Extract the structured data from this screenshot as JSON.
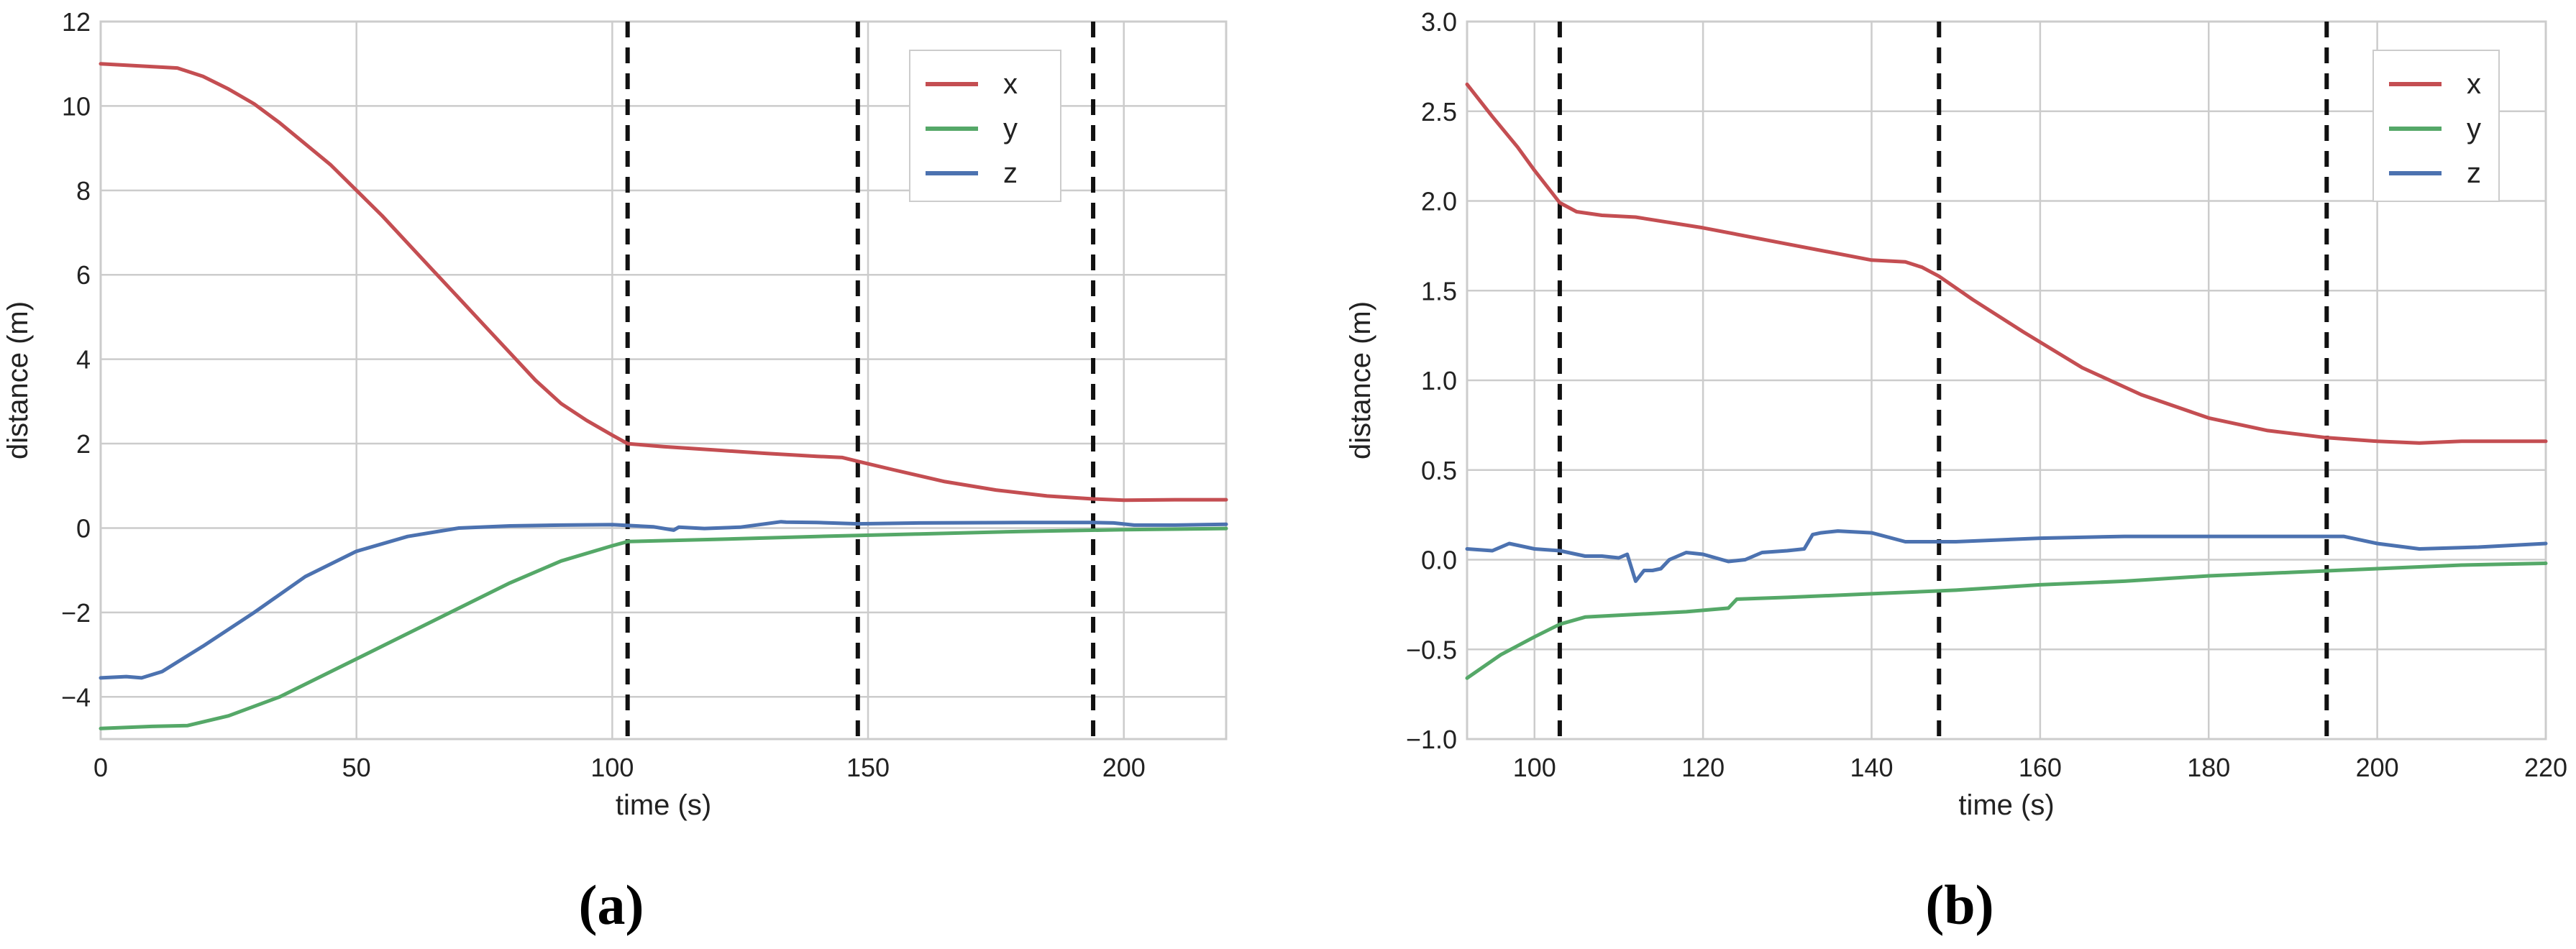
{
  "chart_data": [
    {
      "type": "line",
      "caption": "(a)",
      "xlabel": "time (s)",
      "ylabel": "distance (m)",
      "xlim": [
        0,
        220
      ],
      "ylim": [
        -5,
        12
      ],
      "xticks": [
        0,
        50,
        100,
        150,
        200
      ],
      "xtick_labels": [
        "0",
        "50",
        "100",
        "150",
        "200"
      ],
      "yticks": [
        -4,
        -2,
        0,
        2,
        4,
        6,
        8,
        10,
        12
      ],
      "ytick_labels": [
        "−4",
        "−2",
        "0",
        "2",
        "4",
        "6",
        "8",
        "10",
        "12"
      ],
      "grid": true,
      "legend": "top-right",
      "vlines": [
        103,
        148,
        194
      ],
      "series": [
        {
          "name": "x",
          "color": "#c44e52",
          "x": [
            0,
            15,
            20,
            25,
            30,
            35,
            40,
            45,
            50,
            55,
            60,
            65,
            70,
            75,
            80,
            85,
            90,
            95,
            100,
            103,
            110,
            120,
            130,
            140,
            145,
            148,
            155,
            165,
            175,
            185,
            194,
            200,
            210,
            220
          ],
          "y": [
            11.0,
            10.9,
            10.7,
            10.4,
            10.05,
            9.6,
            9.1,
            8.6,
            8.0,
            7.4,
            6.75,
            6.1,
            5.45,
            4.8,
            4.15,
            3.5,
            2.95,
            2.55,
            2.2,
            2.0,
            1.93,
            1.85,
            1.77,
            1.7,
            1.67,
            1.58,
            1.38,
            1.1,
            0.9,
            0.76,
            0.69,
            0.66,
            0.67,
            0.67
          ]
        },
        {
          "name": "y",
          "color": "#55a868",
          "x": [
            0,
            10,
            17,
            25,
            35,
            50,
            65,
            80,
            90,
            100,
            103,
            120,
            140,
            160,
            180,
            200,
            220
          ],
          "y": [
            -4.75,
            -4.7,
            -4.68,
            -4.45,
            -4.0,
            -3.1,
            -2.2,
            -1.3,
            -0.78,
            -0.42,
            -0.32,
            -0.27,
            -0.2,
            -0.14,
            -0.08,
            -0.04,
            -0.01
          ]
        },
        {
          "name": "z",
          "color": "#4c72b0",
          "x": [
            0,
            5,
            8,
            12,
            20,
            30,
            40,
            50,
            60,
            70,
            80,
            90,
            100,
            103,
            108,
            112,
            113,
            118,
            125,
            133,
            134,
            140,
            148,
            160,
            180,
            194,
            198,
            202,
            210,
            220
          ],
          "y": [
            -3.55,
            -3.52,
            -3.55,
            -3.4,
            -2.8,
            -2.0,
            -1.15,
            -0.55,
            -0.2,
            0.0,
            0.05,
            0.07,
            0.08,
            0.06,
            0.03,
            -0.05,
            0.02,
            -0.01,
            0.02,
            0.15,
            0.14,
            0.13,
            0.1,
            0.12,
            0.13,
            0.13,
            0.12,
            0.07,
            0.07,
            0.09
          ]
        }
      ]
    },
    {
      "type": "line",
      "caption": "(b)",
      "xlabel": "time (s)",
      "ylabel": "distance (m)",
      "xlim": [
        92,
        220
      ],
      "ylim": [
        -1.0,
        3.0
      ],
      "xticks": [
        100,
        120,
        140,
        160,
        180,
        200,
        220
      ],
      "xtick_labels": [
        "100",
        "120",
        "140",
        "160",
        "180",
        "200",
        "220"
      ],
      "yticks": [
        -1.0,
        -0.5,
        0.0,
        0.5,
        1.0,
        1.5,
        2.0,
        2.5,
        3.0
      ],
      "ytick_labels": [
        "−1.0",
        "−0.5",
        "0.0",
        "0.5",
        "1.0",
        "1.5",
        "2.0",
        "2.5",
        "3.0"
      ],
      "grid": true,
      "legend": "top-right",
      "vlines": [
        103,
        148,
        194
      ],
      "series": [
        {
          "name": "x",
          "color": "#c44e52",
          "x": [
            92,
            95,
            98,
            100,
            102,
            103,
            105,
            108,
            112,
            120,
            130,
            140,
            144,
            146,
            148,
            152,
            158,
            165,
            172,
            180,
            187,
            194,
            200,
            205,
            210,
            215,
            220
          ],
          "y": [
            2.65,
            2.47,
            2.3,
            2.17,
            2.05,
            1.99,
            1.94,
            1.92,
            1.91,
            1.85,
            1.76,
            1.67,
            1.66,
            1.63,
            1.58,
            1.45,
            1.27,
            1.07,
            0.92,
            0.79,
            0.72,
            0.68,
            0.66,
            0.65,
            0.66,
            0.66,
            0.66
          ]
        },
        {
          "name": "y",
          "color": "#55a868",
          "x": [
            92,
            96,
            100,
            103,
            106,
            110,
            118,
            123,
            124,
            130,
            140,
            150,
            160,
            170,
            180,
            190,
            200,
            210,
            220
          ],
          "y": [
            -0.66,
            -0.53,
            -0.43,
            -0.36,
            -0.32,
            -0.31,
            -0.29,
            -0.27,
            -0.22,
            -0.21,
            -0.19,
            -0.17,
            -0.14,
            -0.12,
            -0.09,
            -0.07,
            -0.05,
            -0.03,
            -0.02
          ]
        },
        {
          "name": "z",
          "color": "#4c72b0",
          "x": [
            92,
            95,
            97,
            100,
            103,
            106,
            108,
            110,
            111,
            112,
            113,
            114,
            115,
            116,
            117,
            118,
            120,
            123,
            125,
            127,
            130,
            132,
            133,
            134,
            136,
            140,
            144,
            150,
            160,
            170,
            180,
            190,
            196,
            200,
            205,
            212,
            220
          ],
          "y": [
            0.06,
            0.05,
            0.09,
            0.06,
            0.05,
            0.02,
            0.02,
            0.01,
            0.03,
            -0.12,
            -0.06,
            -0.06,
            -0.05,
            0.0,
            0.02,
            0.04,
            0.03,
            -0.01,
            0.0,
            0.04,
            0.05,
            0.06,
            0.14,
            0.15,
            0.16,
            0.15,
            0.1,
            0.1,
            0.12,
            0.13,
            0.13,
            0.13,
            0.13,
            0.09,
            0.06,
            0.07,
            0.09
          ]
        }
      ]
    }
  ]
}
